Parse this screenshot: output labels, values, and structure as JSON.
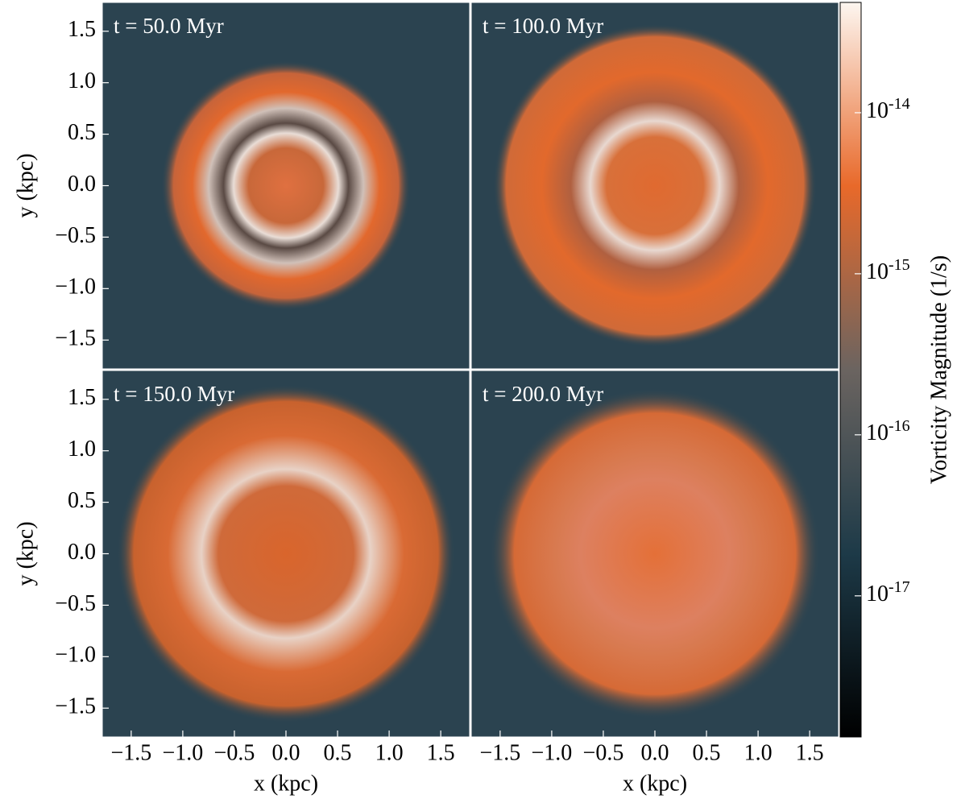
{
  "chart_data": [
    {
      "type": "image",
      "title": "t = 50.0 Myr",
      "ylabel": "y (kpc)",
      "xlim": [
        -1.78,
        1.78
      ],
      "ylim": [
        -1.78,
        1.78
      ],
      "yticks": [
        {
          "value": -1.5,
          "label": "−1.5"
        },
        {
          "value": -1.0,
          "label": "−1.0"
        },
        {
          "value": -0.5,
          "label": "−0.5"
        },
        {
          "value": 0.0,
          "label": "0.0"
        },
        0.5,
        {
          "value": 1.0,
          "label": "1.0"
        },
        1.5
      ]
    },
    {
      "type": "image",
      "title": "t = 100.0 Myr",
      "xlim": [
        -1.78,
        1.78
      ],
      "ylim": [
        -1.78,
        1.78
      ]
    },
    {
      "type": "image",
      "title": "t = 150.0 Myr",
      "xlabel": "x (kpc)",
      "ylabel": "y (kpc)",
      "xlim": [
        -1.78,
        1.78
      ],
      "ylim": [
        -1.78,
        1.78
      ],
      "xticks": [
        {
          "value": -1.5,
          "label": "−1.5"
        },
        {
          "value": -1.0,
          "label": "−1.0"
        },
        {
          "value": -0.5,
          "label": "−0.5"
        },
        {
          "value": 0.0,
          "label": "0.0"
        },
        0.5,
        {
          "value": 1.0,
          "label": "1.0"
        },
        1.5
      ],
      "yticks": [
        {
          "value": -1.5,
          "label": "−1.5"
        },
        {
          "value": -1.0,
          "label": "−1.0"
        },
        {
          "value": -0.5,
          "label": "−0.5"
        },
        {
          "value": 0.0,
          "label": "0.0"
        },
        0.5,
        {
          "value": 1.0,
          "label": "1.0"
        },
        1.5
      ]
    },
    {
      "type": "image",
      "title": "t = 200.0 Myr",
      "xlabel": "x (kpc)",
      "xlim": [
        -1.78,
        1.78
      ],
      "ylim": [
        -1.78,
        1.78
      ],
      "xticks": [
        {
          "value": -1.5,
          "label": "−1.5"
        },
        {
          "value": -1.0,
          "label": "−1.0"
        },
        {
          "value": -0.5,
          "label": "−0.5"
        },
        {
          "value": 0.0,
          "label": "0.0"
        },
        0.5,
        {
          "value": 1.0,
          "label": "1.0"
        },
        1.5
      ]
    },
    {
      "type": "colorbar",
      "label": "Vorticity Magnitude (1/s)",
      "log": true,
      "lim": [
        1.33e-18,
        4.84e-14
      ],
      "ticks": [
        {
          "value": 1e-17,
          "label": "10-17"
        },
        {
          "value": 1e-16,
          "label": "10-16"
        },
        {
          "value": 1e-15,
          "label": "10-15"
        },
        {
          "value": 1e-14,
          "label": "10-14"
        }
      ],
      "colors": [
        "#000000",
        "#1d3a48",
        "#6b6460",
        "#e8692a",
        "#fdf6f0"
      ]
    }
  ]
}
